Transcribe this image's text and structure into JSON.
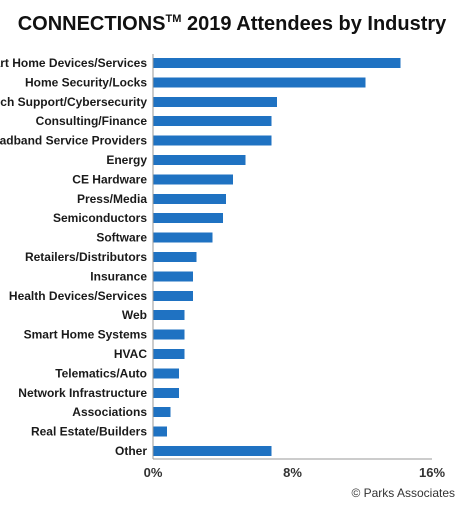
{
  "source": "© Parks Associates",
  "colors": {
    "bar": "#1f72c2",
    "axis": "#9a9a9a",
    "text": "#1a1a1a"
  },
  "chart_data": {
    "type": "bar",
    "orientation": "horizontal",
    "title": "CONNECTIONS",
    "title_superscript": "TM",
    "title_rest": " 2019 Attendees by Industry",
    "xlabel": "",
    "ylabel": "",
    "unit": "%",
    "xlim": [
      0,
      16
    ],
    "x_ticks": [
      "0%",
      "8%",
      "16%"
    ],
    "x_tick_values": [
      0,
      8,
      16
    ],
    "grid": false,
    "legend": "none",
    "categories": [
      "Smart Home Devices/Services",
      "Home Security/Locks",
      "Tech Support/Cybersecurity",
      "Consulting/Finance",
      "Broadband Service Providers",
      "Energy",
      "CE Hardware",
      "Press/Media",
      "Semiconductors",
      "Software",
      "Retailers/Distributors",
      "Insurance",
      "Health Devices/Services",
      "Web",
      "Smart Home Systems",
      "HVAC",
      "Telematics/Auto",
      "Network Infrastructure",
      "Associations",
      "Real Estate/Builders",
      "Other"
    ],
    "values": [
      14.2,
      12.2,
      7.1,
      6.8,
      6.8,
      5.3,
      4.6,
      4.2,
      4.0,
      3.4,
      2.5,
      2.3,
      2.3,
      1.8,
      1.8,
      1.8,
      1.5,
      1.5,
      1.0,
      0.8,
      6.8
    ]
  }
}
